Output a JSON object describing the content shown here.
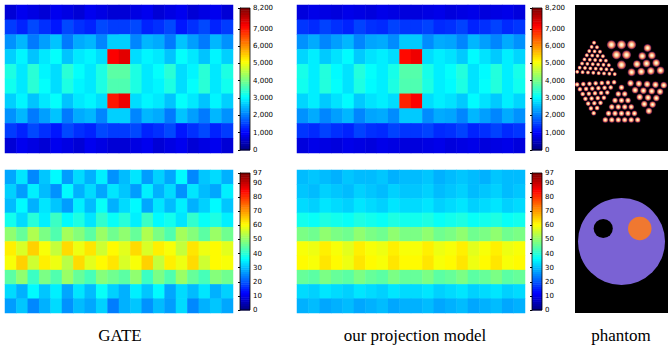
{
  "chart_data": [
    {
      "type": "heatmap",
      "tick_labels": false,
      "color_range": [
        0,
        8200
      ],
      "color_ticks": [
        0,
        1000,
        2000,
        3000,
        4000,
        5000,
        6000,
        7000,
        8000
      ],
      "values": [
        [
          700,
          900,
          800,
          700,
          900,
          800,
          700,
          900,
          800,
          700,
          700,
          800,
          900,
          700,
          800,
          900,
          700,
          800,
          900,
          700
        ],
        [
          1500,
          1300,
          1600,
          1400,
          1200,
          1600,
          1400,
          1300,
          1600,
          1500,
          1500,
          1600,
          1300,
          1400,
          1600,
          1200,
          1400,
          1600,
          1300,
          1500
        ],
        [
          2200,
          2500,
          2000,
          2300,
          2600,
          2000,
          2400,
          2500,
          2100,
          2700,
          2700,
          2100,
          2500,
          2400,
          2000,
          2600,
          2300,
          2000,
          2500,
          2200
        ],
        [
          2700,
          3000,
          2600,
          2900,
          3100,
          2600,
          2900,
          3000,
          2800,
          7200,
          7400,
          2800,
          3000,
          2900,
          2600,
          3100,
          2900,
          2600,
          3000,
          2700
        ],
        [
          3300,
          2900,
          3400,
          3000,
          2800,
          3400,
          3100,
          2900,
          3300,
          3800,
          3800,
          3300,
          2900,
          3100,
          3400,
          2800,
          3000,
          3400,
          2900,
          3300
        ],
        [
          3200,
          2900,
          3400,
          3100,
          2800,
          3300,
          3000,
          2900,
          3300,
          3700,
          3700,
          3300,
          2900,
          3000,
          3300,
          2800,
          3100,
          3400,
          2900,
          3200
        ],
        [
          2700,
          3000,
          2600,
          2900,
          3100,
          2600,
          2900,
          3000,
          2800,
          7000,
          7300,
          2800,
          3000,
          2900,
          2600,
          3100,
          2900,
          2600,
          3000,
          2700
        ],
        [
          2200,
          2500,
          2000,
          2300,
          2600,
          2000,
          2400,
          2500,
          2100,
          2700,
          2700,
          2100,
          2500,
          2400,
          2000,
          2600,
          2300,
          2000,
          2500,
          2200
        ],
        [
          1500,
          1300,
          1600,
          1400,
          1200,
          1600,
          1400,
          1300,
          1600,
          1500,
          1500,
          1600,
          1300,
          1400,
          1600,
          1200,
          1400,
          1600,
          1300,
          1500
        ],
        [
          700,
          900,
          800,
          700,
          900,
          800,
          700,
          900,
          800,
          700,
          700,
          800,
          900,
          700,
          800,
          900,
          700,
          800,
          900,
          700
        ]
      ]
    },
    {
      "type": "heatmap",
      "tick_labels": false,
      "color_range": [
        0,
        8200
      ],
      "color_ticks": [
        0,
        1000,
        2000,
        3000,
        4000,
        5000,
        6000,
        7000,
        8000
      ],
      "values": [
        [
          750,
          850,
          800,
          750,
          850,
          800,
          750,
          850,
          800,
          750,
          750,
          800,
          850,
          750,
          800,
          850,
          750,
          800,
          850,
          750
        ],
        [
          1450,
          1350,
          1550,
          1400,
          1300,
          1550,
          1400,
          1350,
          1550,
          1450,
          1450,
          1550,
          1350,
          1400,
          1550,
          1300,
          1400,
          1550,
          1350,
          1450
        ],
        [
          2200,
          2400,
          2100,
          2300,
          2500,
          2100,
          2350,
          2400,
          2150,
          2650,
          2650,
          2150,
          2400,
          2350,
          2100,
          2500,
          2300,
          2100,
          2400,
          2200
        ],
        [
          2750,
          2950,
          2650,
          2850,
          3050,
          2650,
          2850,
          2950,
          2800,
          7100,
          7300,
          2800,
          2950,
          2850,
          2650,
          3050,
          2850,
          2650,
          2950,
          2750
        ],
        [
          3250,
          2950,
          3350,
          3050,
          2850,
          3350,
          3100,
          2950,
          3250,
          3750,
          3750,
          3250,
          2950,
          3100,
          3350,
          2850,
          3050,
          3350,
          2950,
          3250
        ],
        [
          3200,
          2950,
          3350,
          3100,
          2850,
          3300,
          3050,
          2950,
          3300,
          3700,
          3700,
          3300,
          2950,
          3050,
          3300,
          2850,
          3100,
          3350,
          2950,
          3200
        ],
        [
          2750,
          2950,
          2650,
          2850,
          3050,
          2650,
          2850,
          2950,
          2800,
          6900,
          7200,
          2800,
          2950,
          2850,
          2650,
          3050,
          2850,
          2650,
          2950,
          2750
        ],
        [
          2200,
          2400,
          2100,
          2300,
          2500,
          2100,
          2350,
          2400,
          2150,
          2650,
          2650,
          2150,
          2400,
          2350,
          2100,
          2500,
          2300,
          2100,
          2400,
          2200
        ],
        [
          1450,
          1350,
          1550,
          1400,
          1300,
          1550,
          1400,
          1350,
          1550,
          1450,
          1450,
          1550,
          1350,
          1400,
          1550,
          1300,
          1400,
          1550,
          1350,
          1450
        ],
        [
          750,
          850,
          800,
          750,
          850,
          800,
          750,
          850,
          800,
          750,
          750,
          800,
          850,
          750,
          800,
          850,
          750,
          800,
          850,
          750
        ]
      ]
    },
    {
      "type": "heatmap",
      "tick_labels": false,
      "color_range": [
        0,
        97
      ],
      "color_ticks": [
        0,
        10,
        20,
        30,
        40,
        50,
        60,
        70,
        80,
        90
      ],
      "values": [
        [
          28,
          34,
          25,
          31,
          36,
          27,
          33,
          29,
          35,
          26,
          30,
          34,
          27,
          32,
          28,
          36,
          25,
          31,
          33,
          29
        ],
        [
          32,
          27,
          35,
          30,
          26,
          36,
          29,
          33,
          28,
          34,
          31,
          27,
          35,
          29,
          33,
          26,
          34,
          30,
          28,
          35
        ],
        [
          30,
          36,
          29,
          34,
          31,
          27,
          35,
          30,
          37,
          29,
          33,
          36,
          28,
          34,
          30,
          35,
          29,
          32,
          36,
          31
        ],
        [
          38,
          33,
          40,
          35,
          42,
          36,
          39,
          34,
          41,
          37,
          40,
          35,
          42,
          36,
          38,
          34,
          41,
          37,
          39,
          35
        ],
        [
          50,
          46,
          53,
          48,
          44,
          52,
          49,
          45,
          51,
          47,
          50,
          46,
          53,
          48,
          44,
          52,
          49,
          45,
          51,
          47
        ],
        [
          62,
          57,
          65,
          60,
          55,
          64,
          59,
          63,
          56,
          61,
          58,
          64,
          57,
          62,
          60,
          55,
          63,
          59,
          61,
          58
        ],
        [
          60,
          65,
          56,
          62,
          59,
          54,
          64,
          58,
          61,
          63,
          57,
          60,
          65,
          55,
          62,
          59,
          64,
          56,
          61,
          60
        ],
        [
          45,
          50,
          42,
          48,
          44,
          51,
          46,
          43,
          49,
          47,
          45,
          50,
          42,
          48,
          44,
          51,
          46,
          43,
          49,
          47
        ],
        [
          33,
          29,
          36,
          31,
          35,
          28,
          34,
          30,
          37,
          32,
          29,
          35,
          31,
          36,
          28,
          33,
          30,
          34,
          29,
          32
        ],
        [
          27,
          31,
          25,
          29,
          33,
          26,
          30,
          28,
          32,
          24,
          29,
          31,
          26,
          30,
          27,
          33,
          25,
          29,
          31,
          28
        ]
      ]
    },
    {
      "type": "heatmap",
      "tick_labels": false,
      "color_range": [
        0,
        97
      ],
      "color_ticks": [
        0,
        10,
        20,
        30,
        40,
        50,
        60,
        70,
        80,
        90
      ],
      "values": [
        [
          30,
          31,
          30,
          29,
          31,
          30,
          30,
          31,
          29,
          30,
          30,
          31,
          29,
          30,
          31,
          30,
          29,
          31,
          30,
          30
        ],
        [
          31,
          30,
          32,
          31,
          30,
          32,
          31,
          30,
          32,
          31,
          31,
          32,
          30,
          31,
          32,
          30,
          31,
          32,
          30,
          31
        ],
        [
          33,
          32,
          34,
          33,
          32,
          34,
          33,
          32,
          34,
          33,
          33,
          34,
          32,
          33,
          34,
          32,
          33,
          34,
          32,
          33
        ],
        [
          38,
          37,
          39,
          38,
          37,
          39,
          38,
          37,
          39,
          38,
          38,
          39,
          37,
          38,
          39,
          37,
          38,
          39,
          37,
          38
        ],
        [
          48,
          47,
          50,
          48,
          47,
          50,
          48,
          47,
          50,
          48,
          48,
          50,
          47,
          48,
          50,
          47,
          48,
          50,
          47,
          48
        ],
        [
          60,
          59,
          62,
          60,
          58,
          62,
          60,
          59,
          62,
          60,
          60,
          62,
          59,
          60,
          62,
          58,
          60,
          62,
          59,
          60
        ],
        [
          61,
          60,
          63,
          61,
          59,
          63,
          61,
          60,
          63,
          61,
          61,
          63,
          60,
          61,
          63,
          59,
          61,
          63,
          60,
          61
        ],
        [
          46,
          45,
          48,
          46,
          45,
          48,
          46,
          45,
          48,
          46,
          46,
          48,
          45,
          46,
          48,
          45,
          46,
          48,
          45,
          46
        ],
        [
          33,
          32,
          34,
          33,
          32,
          34,
          33,
          32,
          34,
          33,
          33,
          34,
          32,
          33,
          34,
          32,
          33,
          34,
          32,
          33
        ],
        [
          29,
          30,
          28,
          29,
          30,
          28,
          29,
          30,
          28,
          29,
          29,
          30,
          28,
          29,
          30,
          28,
          29,
          30,
          28,
          29
        ]
      ]
    }
  ],
  "captions": [
    "GATE",
    "our projection model",
    "phantom"
  ]
}
